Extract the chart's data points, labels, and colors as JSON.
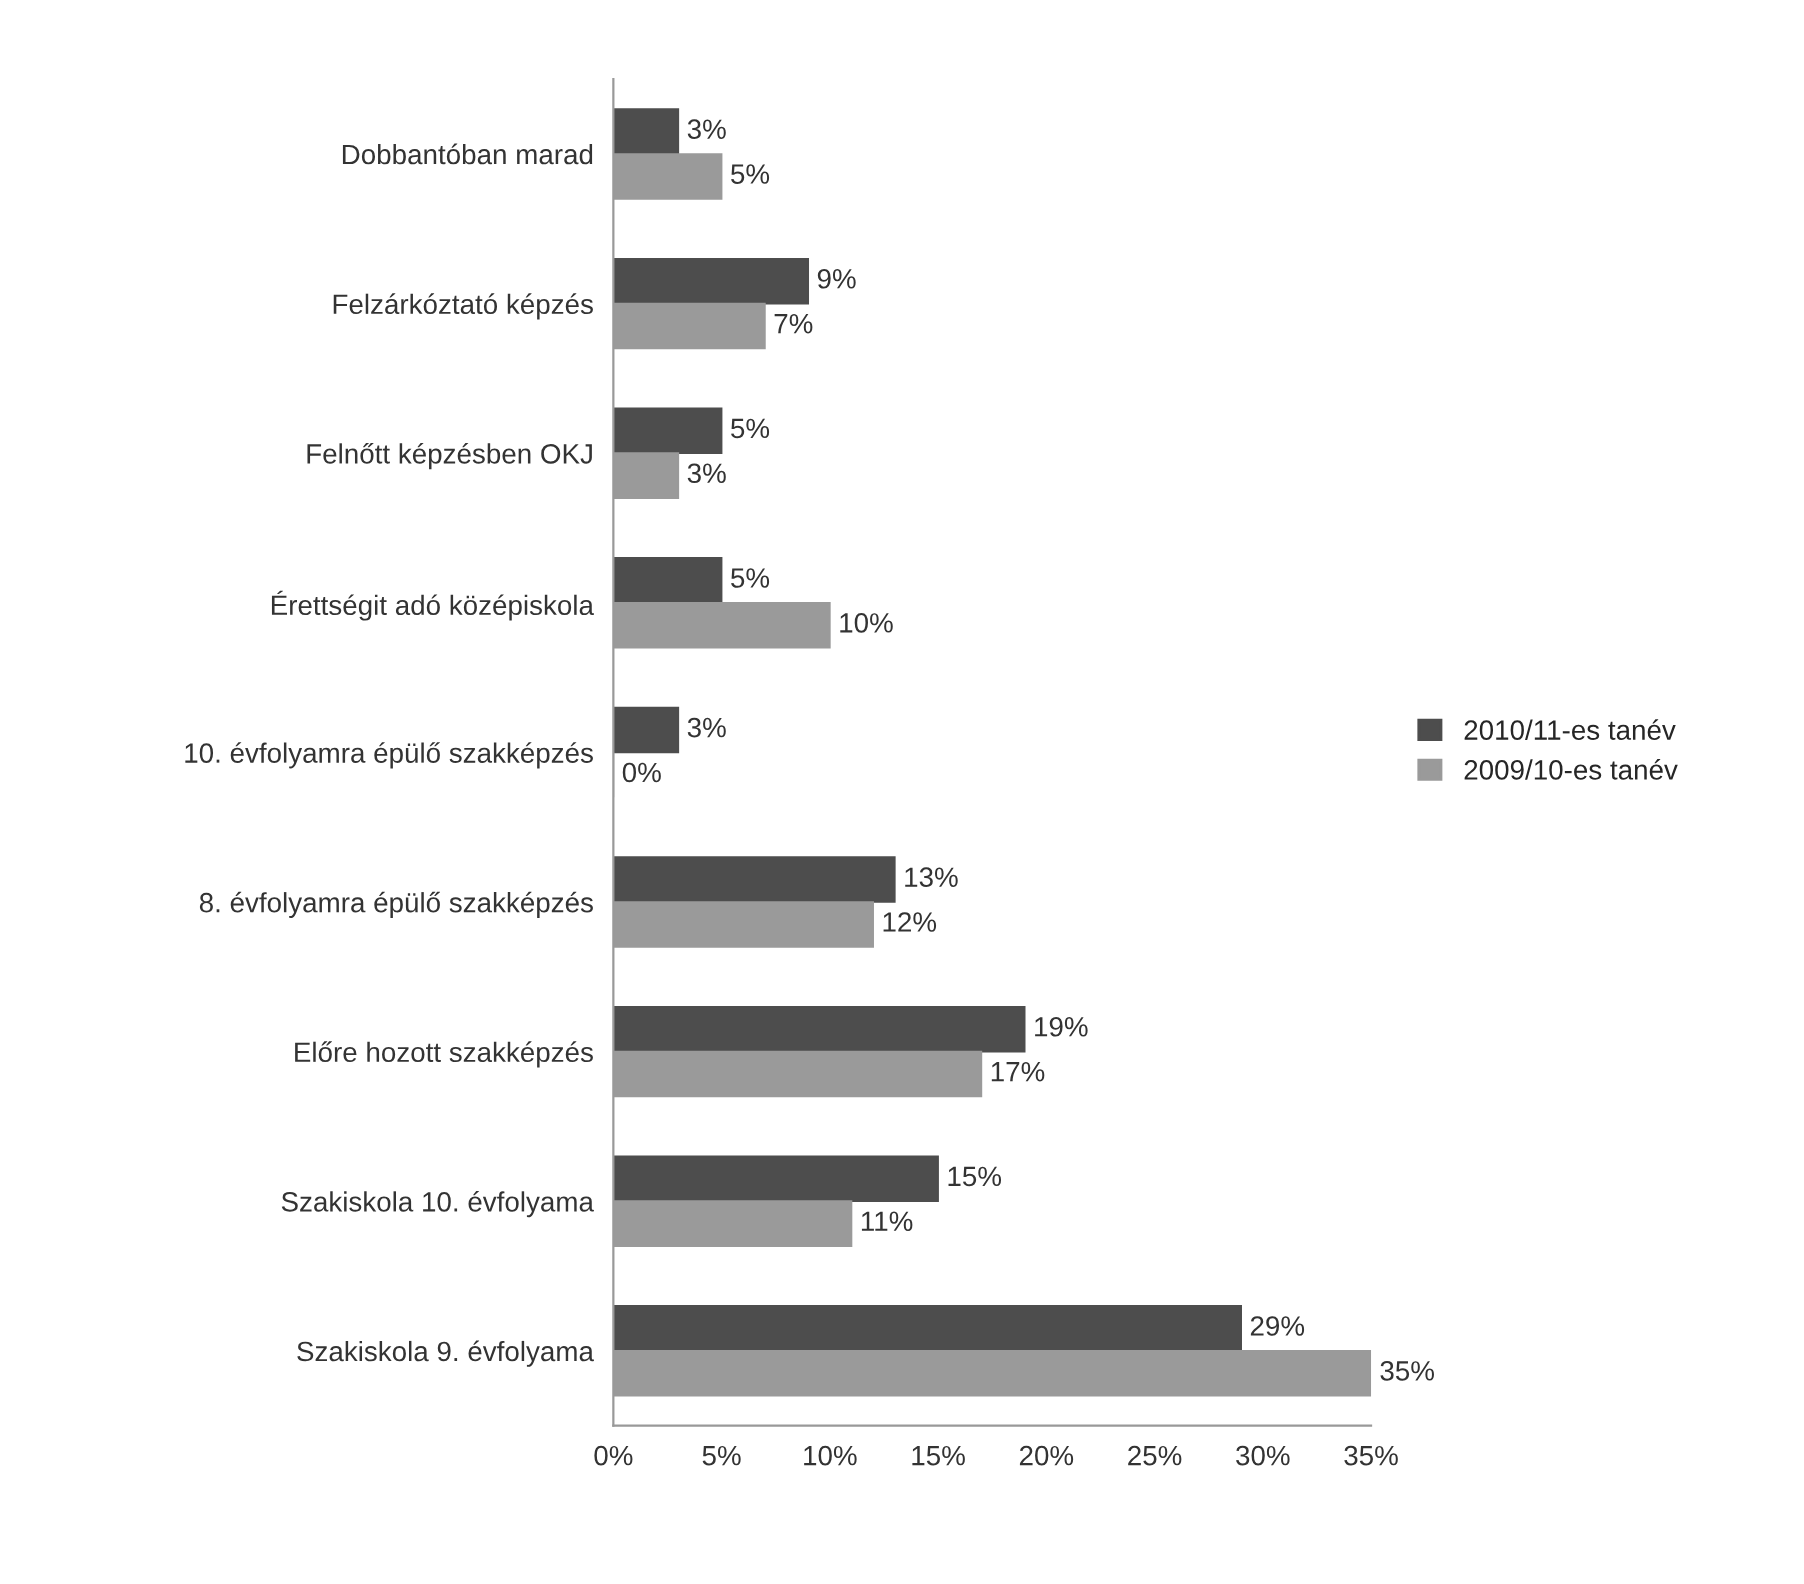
{
  "chart_data": {
    "type": "bar",
    "orientation": "horizontal",
    "categories": [
      "Dobbantóban marad",
      "Felzárkóztató képzés",
      "Felnőtt képzésben OKJ",
      "Érettségit adó középiskola",
      "10. évfolyamra épülő szakképzés",
      "8. évfolyamra épülő szakképzés",
      "Előre hozott szakképzés",
      "Szakiskola 10. évfolyama",
      "Szakiskola 9. évfolyama"
    ],
    "series": [
      {
        "name": "2010/11-es tanév",
        "color": "#4d4d4d",
        "values": [
          3,
          9,
          5,
          5,
          3,
          13,
          19,
          15,
          29
        ],
        "value_labels": [
          "3%",
          "9%",
          "5%",
          "5%",
          "3%",
          "13%",
          "19%",
          "15%",
          "29%"
        ]
      },
      {
        "name": "2009/10-es tanév",
        "color": "#9a9a9a",
        "values": [
          5,
          7,
          3,
          10,
          0,
          12,
          17,
          11,
          35
        ],
        "value_labels": [
          "5%",
          "7%",
          "3%",
          "10%",
          "0%",
          "12%",
          "17%",
          "11%",
          "35%"
        ]
      }
    ],
    "xlim": [
      0,
      35
    ],
    "xticks": [
      {
        "value": 0,
        "label": "0%"
      },
      {
        "value": 5,
        "label": "5%"
      },
      {
        "value": 10,
        "label": "10%"
      },
      {
        "value": 15,
        "label": "15%"
      },
      {
        "value": 20,
        "label": "20%"
      },
      {
        "value": 25,
        "label": "25%"
      },
      {
        "value": 30,
        "label": "30%"
      },
      {
        "value": 35,
        "label": "35%"
      }
    ],
    "grid": false,
    "legend": "right"
  }
}
